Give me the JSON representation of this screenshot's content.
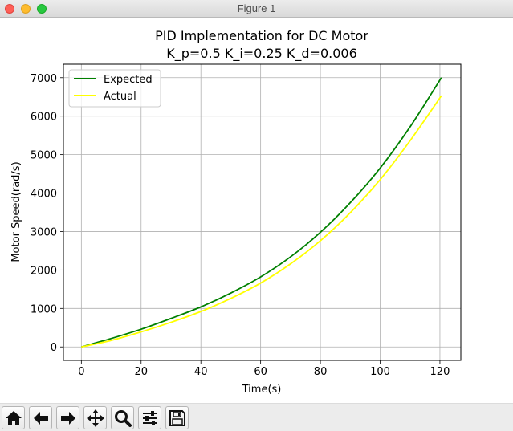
{
  "window": {
    "title": "Figure 1"
  },
  "toolbar": {
    "buttons": [
      {
        "name": "home-button",
        "icon": "home-icon"
      },
      {
        "name": "back-button",
        "icon": "arrow-left-icon"
      },
      {
        "name": "forward-button",
        "icon": "arrow-right-icon"
      },
      {
        "name": "pan-button",
        "icon": "move-icon"
      },
      {
        "name": "zoom-button",
        "icon": "magnifier-icon"
      },
      {
        "name": "configure-subplots-button",
        "icon": "sliders-icon"
      },
      {
        "name": "save-button",
        "icon": "floppy-disk-icon"
      }
    ]
  },
  "chart_data": {
    "type": "line",
    "title_line1": "PID Implementation for DC Motor",
    "title_line2": "K_p=0.5 K_i=0.25 K_d=0.006",
    "xlabel": "Time(s)",
    "ylabel": "Motor Speed(rad/s)",
    "xlim": [
      -6,
      127
    ],
    "ylim": [
      -350,
      7350
    ],
    "xticks": [
      0,
      20,
      40,
      60,
      80,
      100,
      120
    ],
    "yticks": [
      0,
      1000,
      2000,
      3000,
      4000,
      5000,
      6000,
      7000
    ],
    "grid": true,
    "legend_position": "upper-left",
    "series": [
      {
        "name": "Expected",
        "color": "#008000",
        "x": [
          0,
          10,
          20,
          30,
          40,
          50,
          60,
          70,
          80,
          90,
          100,
          110,
          120.5
        ],
        "y": [
          0,
          220,
          460,
          740,
          1040,
          1400,
          1820,
          2340,
          2980,
          3750,
          4650,
          5720,
          7000
        ]
      },
      {
        "name": "Actual",
        "color": "#ffff00",
        "x": [
          0,
          10,
          20,
          30,
          40,
          50,
          60,
          70,
          80,
          90,
          100,
          110,
          120.5
        ],
        "y": [
          0,
          170,
          390,
          640,
          920,
          1260,
          1660,
          2160,
          2760,
          3490,
          4350,
          5360,
          6530
        ]
      }
    ]
  }
}
